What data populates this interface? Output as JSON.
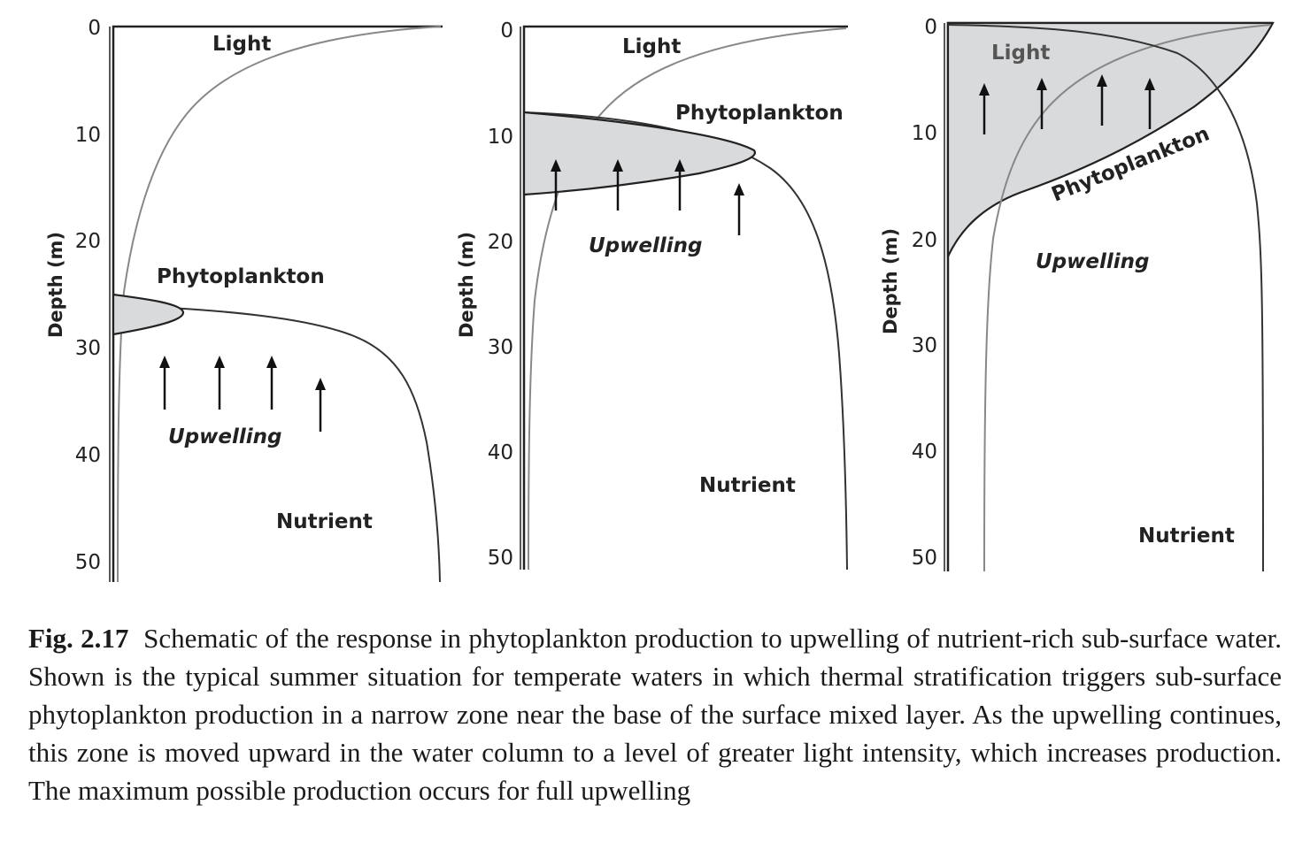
{
  "figure": {
    "panels": [
      {
        "y_ticks": [
          "0",
          "10",
          "20",
          "30",
          "40",
          "50"
        ],
        "y_label": "Depth (m)",
        "labels": {
          "light": "Light",
          "phytoplankton": "Phytoplankton",
          "upwelling": "Upwelling",
          "nutrient": "Nutrient"
        }
      },
      {
        "y_ticks": [
          "0",
          "10",
          "20",
          "30",
          "40",
          "50"
        ],
        "y_label": "Depth (m)",
        "labels": {
          "light": "Light",
          "phytoplankton": "Phytoplankton",
          "upwelling": "Upwelling",
          "nutrient": "Nutrient"
        }
      },
      {
        "y_ticks": [
          "0",
          "10",
          "20",
          "30",
          "40",
          "50"
        ],
        "y_label": "Depth (m)",
        "labels": {
          "light": "Light",
          "phytoplankton": "Phytoplankton",
          "upwelling": "Upwelling",
          "nutrient": "Nutrient"
        }
      }
    ]
  },
  "caption": {
    "number": "Fig. 2.17",
    "text": "Schematic of the response in phytoplankton production to upwelling of nutrient-rich sub-surface water. Shown is the typical summer situation for temperate waters in which thermal stratification triggers sub-surface phytoplankton production in a narrow zone near the base of the surface mixed layer. As the upwelling continues, this zone is moved upward in the water column to a level of greater light intensity, which increases production. The maximum possible production occurs for full upwelling"
  },
  "colors": {
    "shade": "#d9dadc",
    "light_curve": "#888888",
    "dark_curve": "#333333"
  }
}
